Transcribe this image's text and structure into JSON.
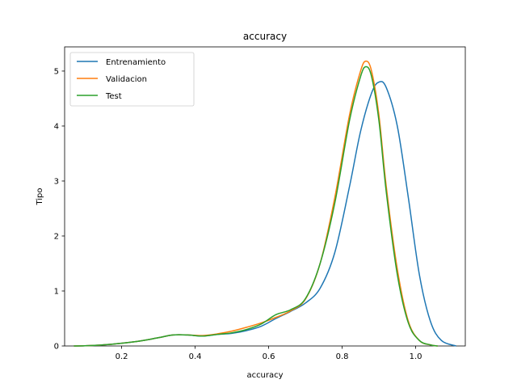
{
  "chart_data": {
    "type": "line",
    "title": "accuracy",
    "xlabel": "accuracy",
    "ylabel": "Tipo",
    "xlim": [
      0.045,
      1.135
    ],
    "ylim": [
      0,
      5.44
    ],
    "xticks": [
      0.2,
      0.4,
      0.6,
      0.8,
      1.0
    ],
    "xtick_labels": [
      "0.2",
      "0.4",
      "0.6",
      "0.8",
      "1.0"
    ],
    "yticks": [
      0,
      1,
      2,
      3,
      4,
      5
    ],
    "ytick_labels": [
      "0",
      "1",
      "2",
      "3",
      "4",
      "5"
    ],
    "grid": false,
    "legend_position": "top-left",
    "series": [
      {
        "name": "Entrenamiento",
        "color": "#1f77b4",
        "x": [
          0.07,
          0.1,
          0.15,
          0.2,
          0.25,
          0.3,
          0.34,
          0.38,
          0.42,
          0.46,
          0.5,
          0.54,
          0.58,
          0.62,
          0.66,
          0.7,
          0.74,
          0.78,
          0.82,
          0.85,
          0.88,
          0.9,
          0.92,
          0.95,
          0.98,
          1.01,
          1.04,
          1.07,
          1.11
        ],
        "y": [
          0.0,
          0.003,
          0.02,
          0.05,
          0.09,
          0.15,
          0.2,
          0.2,
          0.18,
          0.21,
          0.23,
          0.28,
          0.36,
          0.5,
          0.63,
          0.78,
          1.05,
          1.7,
          2.9,
          3.9,
          4.6,
          4.8,
          4.7,
          4.0,
          2.7,
          1.3,
          0.45,
          0.1,
          0.0
        ]
      },
      {
        "name": "Validacion",
        "color": "#ff7f0e",
        "x": [
          0.07,
          0.1,
          0.15,
          0.2,
          0.25,
          0.3,
          0.34,
          0.38,
          0.42,
          0.46,
          0.5,
          0.54,
          0.58,
          0.62,
          0.66,
          0.7,
          0.74,
          0.78,
          0.82,
          0.85,
          0.865,
          0.88,
          0.9,
          0.92,
          0.95,
          0.98,
          1.01,
          1.04,
          1.06
        ],
        "y": [
          0.0,
          0.003,
          0.02,
          0.05,
          0.09,
          0.15,
          0.2,
          0.2,
          0.19,
          0.22,
          0.27,
          0.34,
          0.42,
          0.52,
          0.64,
          0.85,
          1.5,
          2.7,
          4.2,
          5.0,
          5.18,
          5.0,
          4.2,
          2.9,
          1.4,
          0.45,
          0.1,
          0.02,
          0.0
        ]
      },
      {
        "name": "Test",
        "color": "#2ca02c",
        "x": [
          0.07,
          0.1,
          0.15,
          0.2,
          0.25,
          0.3,
          0.34,
          0.38,
          0.42,
          0.46,
          0.5,
          0.54,
          0.58,
          0.62,
          0.66,
          0.7,
          0.74,
          0.78,
          0.82,
          0.85,
          0.865,
          0.88,
          0.9,
          0.92,
          0.95,
          0.98,
          1.01,
          1.04,
          1.06
        ],
        "y": [
          0.0,
          0.003,
          0.02,
          0.05,
          0.09,
          0.15,
          0.2,
          0.2,
          0.18,
          0.21,
          0.24,
          0.3,
          0.4,
          0.57,
          0.66,
          0.86,
          1.5,
          2.6,
          4.1,
          4.9,
          5.08,
          4.9,
          4.1,
          2.8,
          1.3,
          0.42,
          0.1,
          0.02,
          0.0
        ]
      }
    ]
  }
}
